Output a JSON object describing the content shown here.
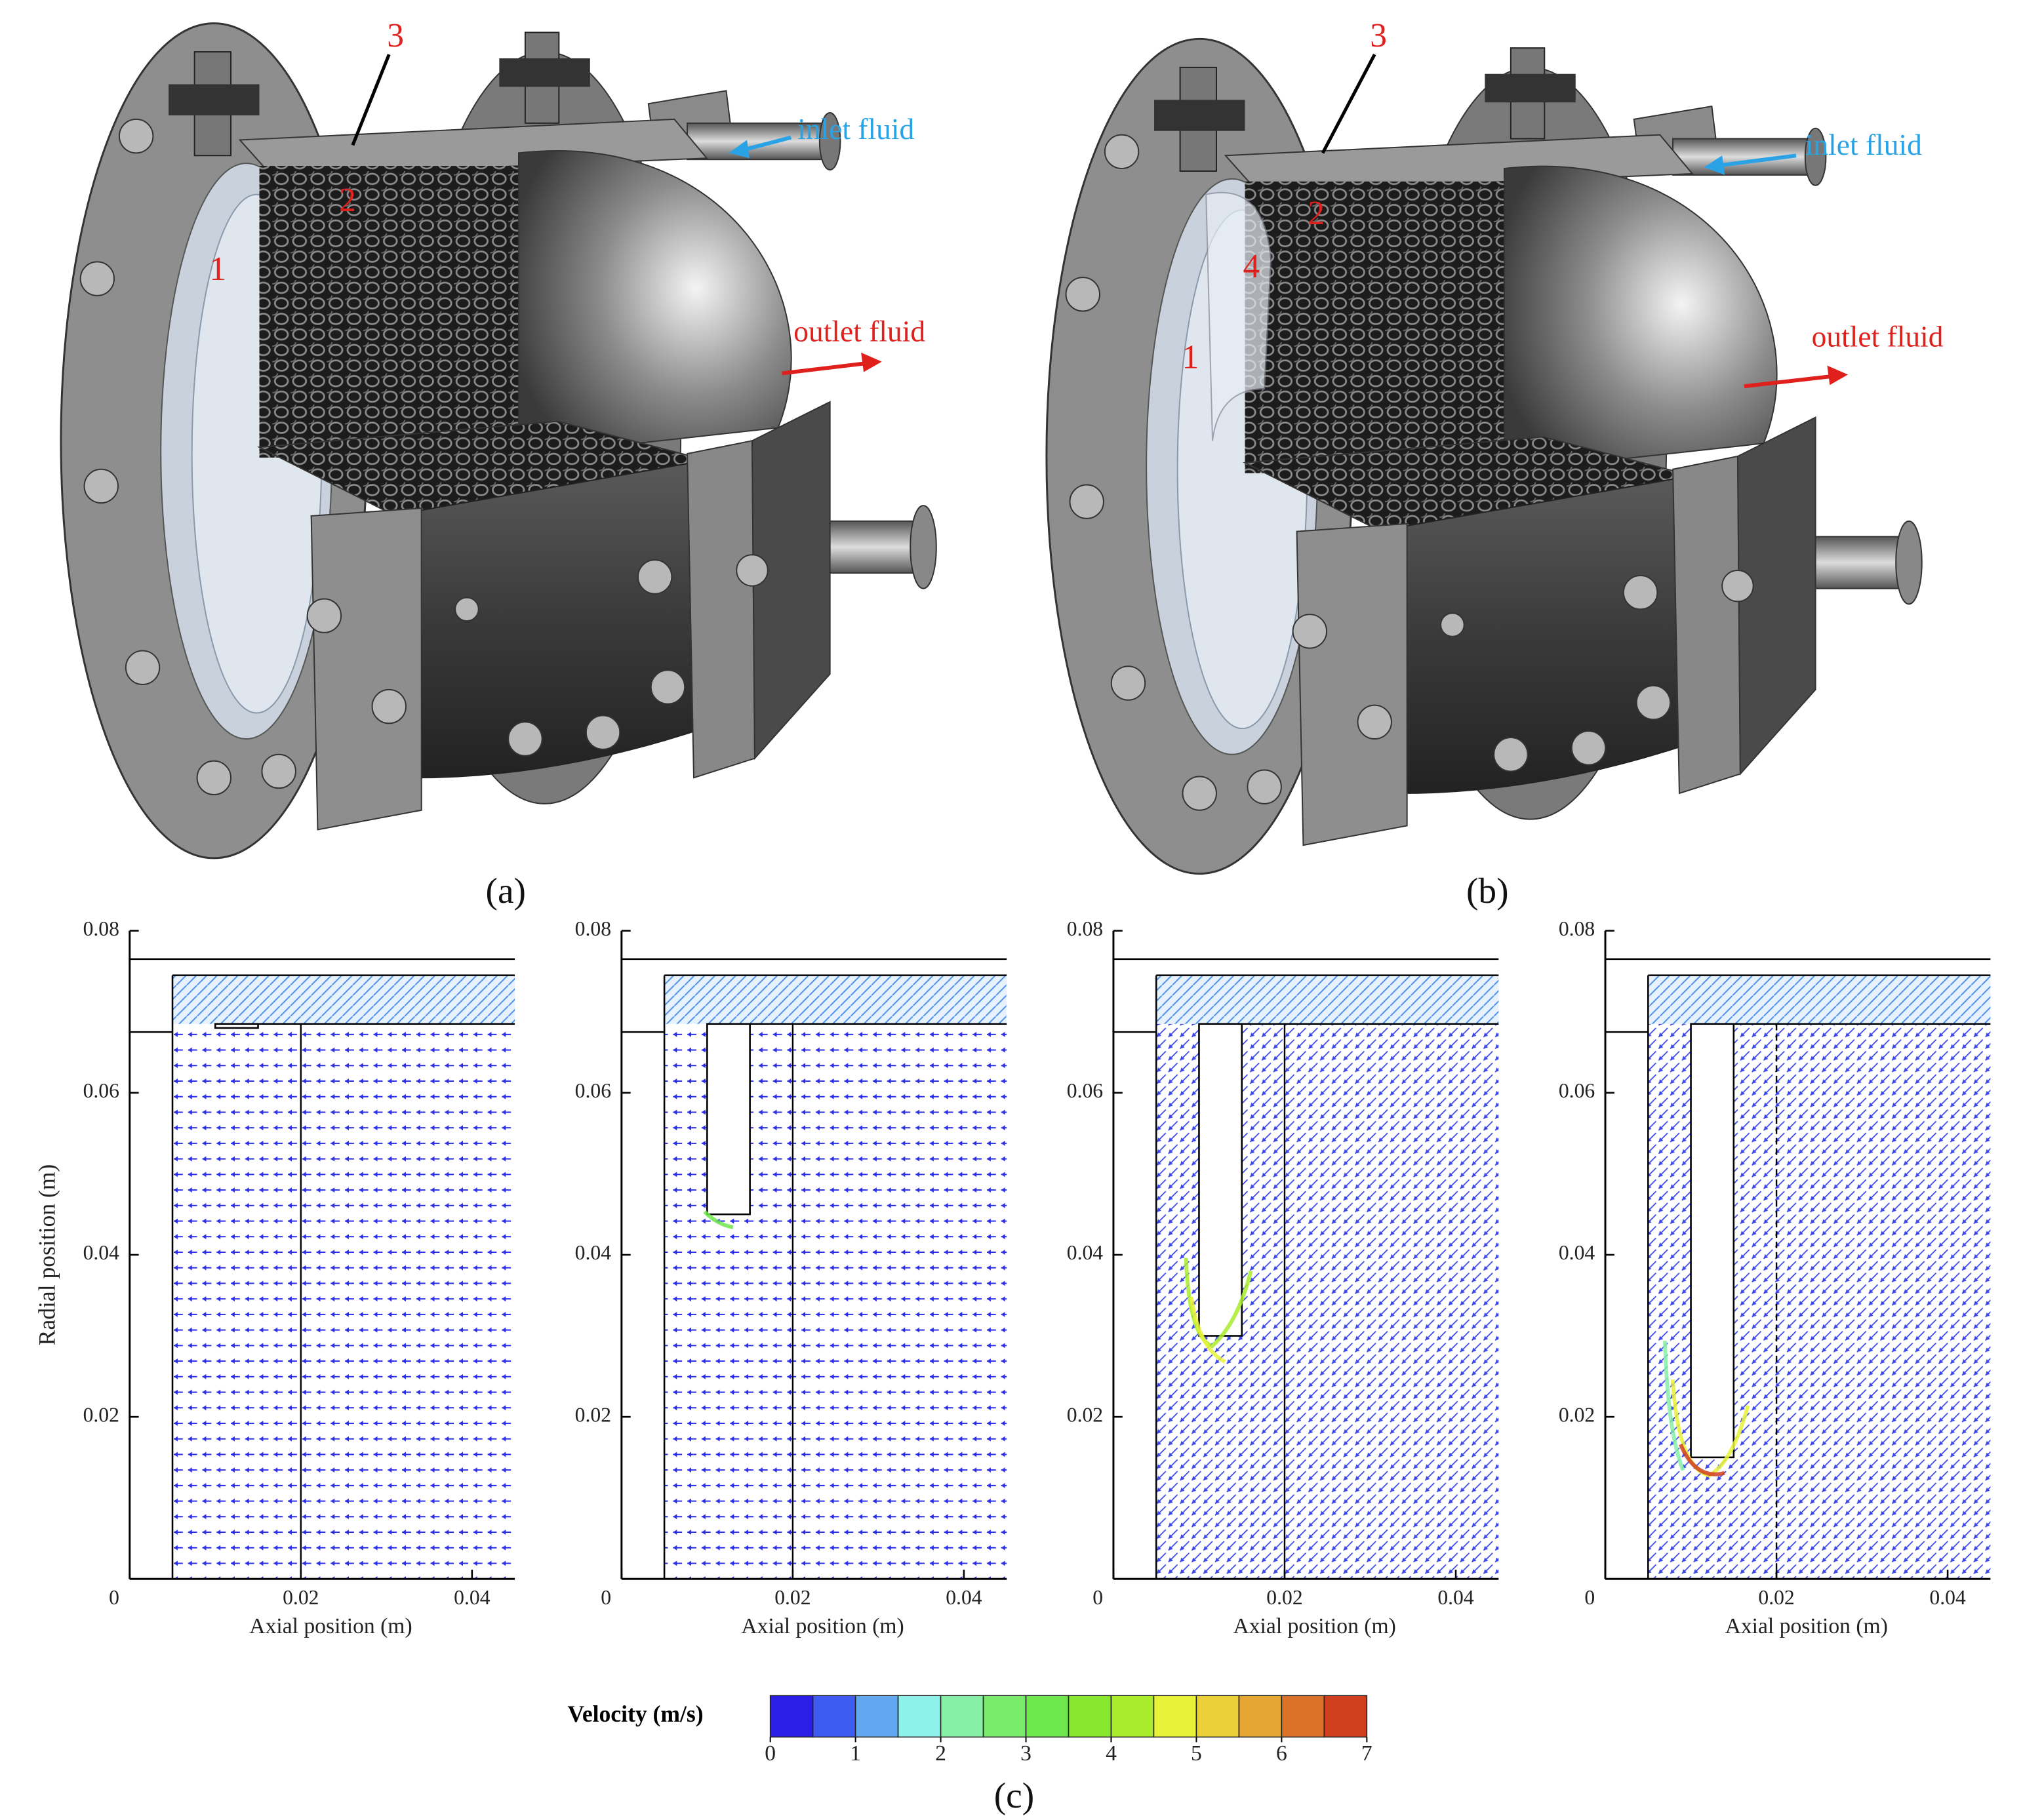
{
  "panels": [
    {
      "caption": "(a)",
      "labels": [
        "3",
        "2",
        "1"
      ],
      "inlet": "inlet fluid",
      "outlet": "outlet fluid"
    },
    {
      "caption": "(b)",
      "labels": [
        "3",
        "2",
        "4",
        "1"
      ],
      "inlet": "inlet fluid",
      "outlet": "outlet fluid"
    }
  ],
  "chart_data": [
    {
      "type": "vector",
      "xlabel": "Axial position (m)",
      "ylabel": "Radial position (m)",
      "xlim": [
        0,
        0.045
      ],
      "ylim": [
        0,
        0.08
      ],
      "xticks": [
        0,
        0.02,
        0.04
      ],
      "yticks": [
        0.02,
        0.04,
        0.06,
        0.08
      ]
    },
    {
      "type": "vector",
      "xlabel": "Axial position (m)",
      "xlim": [
        0,
        0.045
      ],
      "ylim": [
        0,
        0.08
      ],
      "xticks": [
        0,
        0.02,
        0.04
      ],
      "yticks": [
        0.02,
        0.04,
        0.06,
        0.08
      ]
    },
    {
      "type": "vector",
      "xlabel": "Axial position (m)",
      "xlim": [
        0,
        0.045
      ],
      "ylim": [
        0,
        0.08
      ],
      "xticks": [
        0,
        0.02,
        0.04
      ],
      "yticks": [
        0.02,
        0.04,
        0.06,
        0.08
      ]
    },
    {
      "type": "vector",
      "xlabel": "Axial position (m)",
      "xlim": [
        0,
        0.045
      ],
      "ylim": [
        0,
        0.08
      ],
      "xticks": [
        0,
        0.02,
        0.04
      ],
      "yticks": [
        0.02,
        0.04,
        0.06,
        0.08
      ]
    }
  ],
  "colorbar": {
    "label": "Velocity (m/s)",
    "lim": [
      0,
      7
    ],
    "ticks": [
      0,
      1,
      2,
      3,
      4,
      5,
      6,
      7
    ],
    "colors": [
      "#2b1ee6",
      "#3f5cf0",
      "#62a8f0",
      "#8cf2ea",
      "#86f0a6",
      "#78ec6a",
      "#6ee84c",
      "#88e830",
      "#a8ec2c",
      "#e8f238",
      "#ecd03a",
      "#e6a632",
      "#dc7228",
      "#d0401e"
    ]
  },
  "caption": "(c)"
}
